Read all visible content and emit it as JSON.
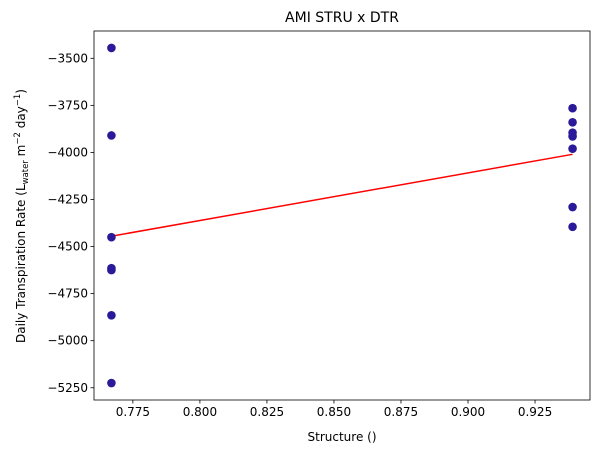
{
  "chart_data": {
    "type": "scatter",
    "title": "AMI STRU x DTR",
    "xlabel": "Structure ()",
    "ylabel": "Daily Transpiration Rate (L_water m^-2 day^-1)",
    "ylabel_parts": {
      "prefix": "Daily Transpiration Rate (L",
      "sub": "water",
      "mid1": " m",
      "sup1": "−2",
      "mid2": " day",
      "sup2": "−1",
      "suffix": ")"
    },
    "xlim": [
      0.7605,
      0.9455
    ],
    "ylim": [
      -5315,
      -3355
    ],
    "x_ticks": [
      0.775,
      0.8,
      0.825,
      0.85,
      0.875,
      0.9,
      0.925
    ],
    "x_tick_labels": [
      "0.775",
      "0.800",
      "0.825",
      "0.850",
      "0.875",
      "0.900",
      "0.925"
    ],
    "y_ticks": [
      -3500,
      -3750,
      -4000,
      -4250,
      -4500,
      -4750,
      -5000,
      -5250
    ],
    "y_tick_labels": [
      "−3500",
      "−3750",
      "−4000",
      "−4250",
      "−4500",
      "−4750",
      "−5000",
      "−5250"
    ],
    "grid": false,
    "colors": {
      "points": "#2a1a99",
      "fit_line": "#ff0000",
      "axes": "#000000"
    },
    "series": [
      {
        "kind": "points",
        "points": [
          {
            "x": 0.767,
            "y": -3445
          },
          {
            "x": 0.767,
            "y": -3910
          },
          {
            "x": 0.767,
            "y": -4450
          },
          {
            "x": 0.767,
            "y": -4615
          },
          {
            "x": 0.767,
            "y": -4625
          },
          {
            "x": 0.767,
            "y": -4865
          },
          {
            "x": 0.767,
            "y": -5225
          },
          {
            "x": 0.939,
            "y": -3765
          },
          {
            "x": 0.939,
            "y": -3840
          },
          {
            "x": 0.939,
            "y": -3895
          },
          {
            "x": 0.939,
            "y": -3915
          },
          {
            "x": 0.939,
            "y": -3980
          },
          {
            "x": 0.939,
            "y": -4290
          },
          {
            "x": 0.939,
            "y": -4395
          }
        ]
      },
      {
        "kind": "fit_line",
        "points": [
          {
            "x": 0.767,
            "y": -4445
          },
          {
            "x": 0.939,
            "y": -4010
          }
        ]
      }
    ]
  }
}
